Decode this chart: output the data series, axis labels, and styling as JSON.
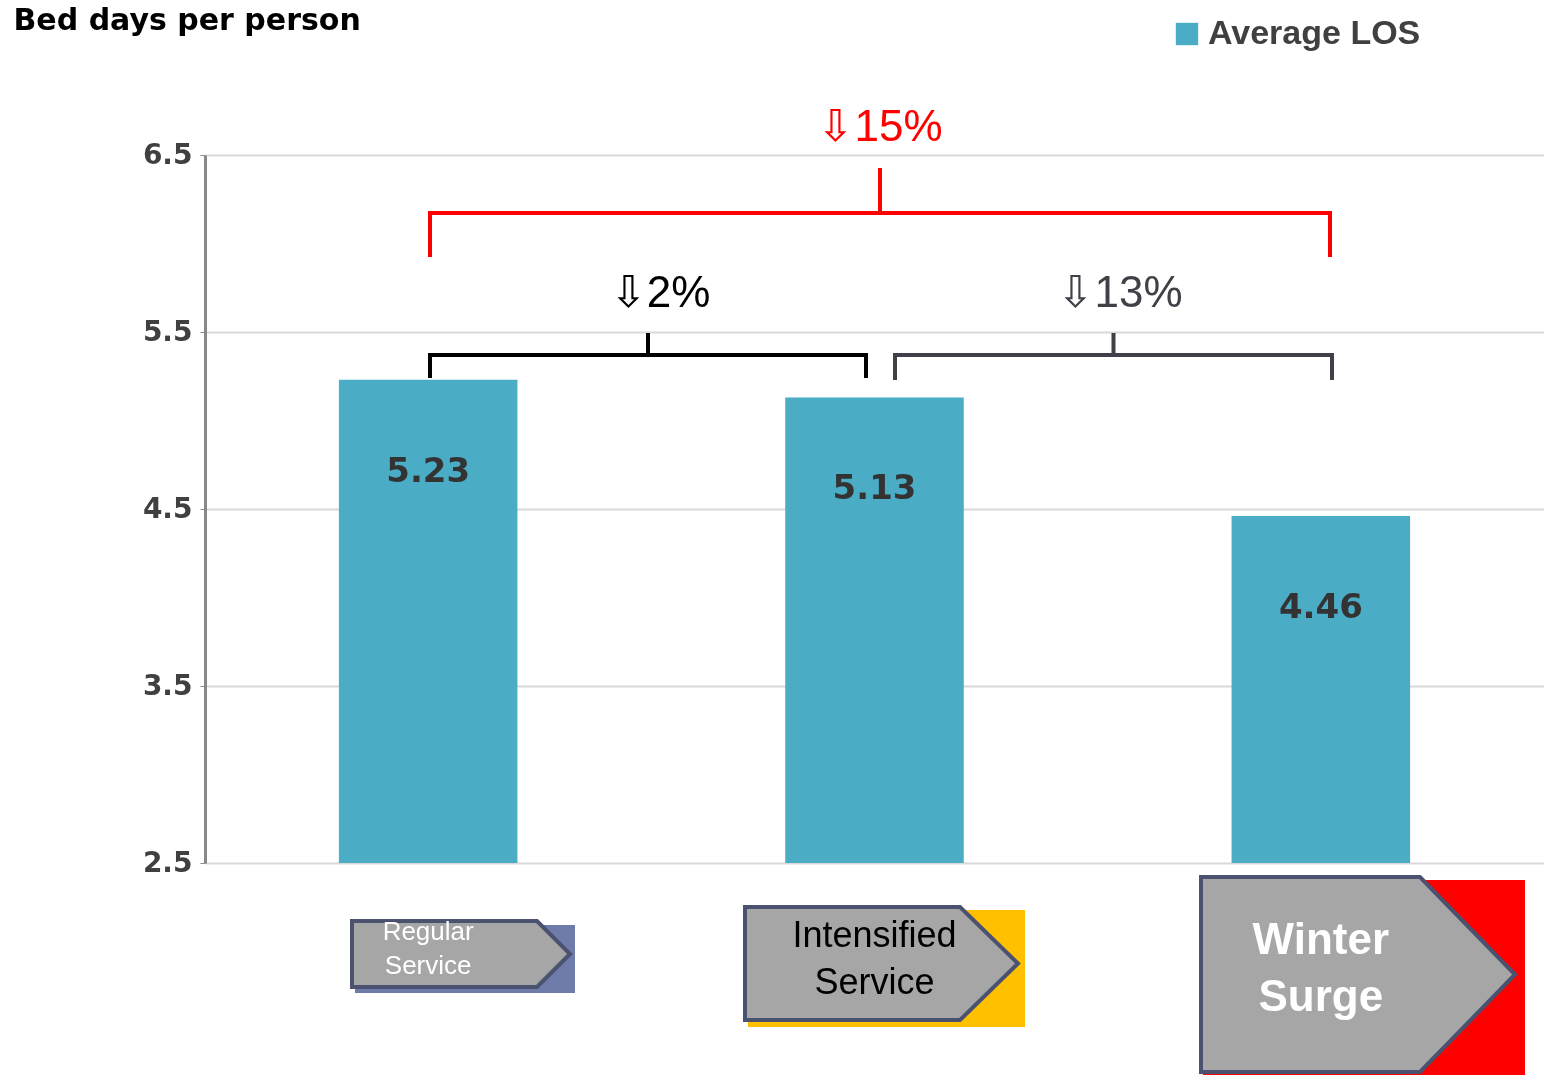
{
  "chart_data": {
    "type": "bar",
    "ylabel": "Bed days per person",
    "categories": [
      "Regular Service",
      "Intensified Service",
      "Winter Surge"
    ],
    "series": [
      {
        "name": "Average LOS",
        "color": "#4bacc6",
        "values": [
          5.23,
          5.13,
          4.46
        ]
      }
    ],
    "ylim": [
      2.5,
      6.5
    ],
    "yticks": [
      2.5,
      3.5,
      4.5,
      5.5,
      6.5
    ],
    "grid": "y",
    "legend": "top right",
    "data_labels": true,
    "annotations": [
      "⇩15%",
      "⇩2%",
      "⇩13%"
    ]
  }
}
